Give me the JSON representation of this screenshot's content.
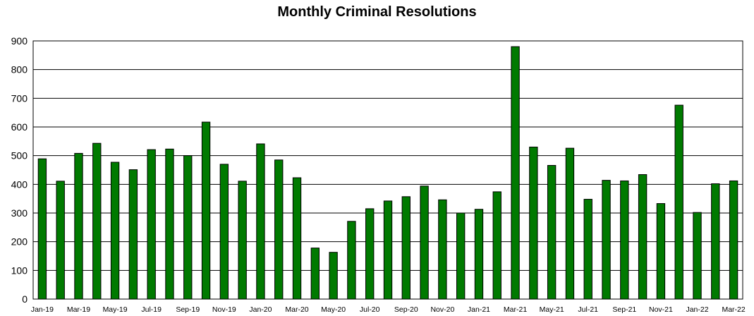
{
  "chart_data": {
    "type": "bar",
    "title": "Monthly Criminal Resolutions",
    "xlabel": "",
    "ylabel": "",
    "ylim": [
      0,
      900
    ],
    "yticks": [
      0,
      100,
      200,
      300,
      400,
      500,
      600,
      700,
      800,
      900
    ],
    "grid": true,
    "legend": "none",
    "bar_color": "#007a00",
    "categories": [
      "Jan-19",
      "Feb-19",
      "Mar-19",
      "Apr-19",
      "May-19",
      "Jun-19",
      "Jul-19",
      "Aug-19",
      "Sep-19",
      "Oct-19",
      "Nov-19",
      "Dec-19",
      "Jan-20",
      "Feb-20",
      "Mar-20",
      "Apr-20",
      "May-20",
      "Jun-20",
      "Jul-20",
      "Aug-20",
      "Sep-20",
      "Oct-20",
      "Nov-20",
      "Dec-20",
      "Jan-21",
      "Feb-21",
      "Mar-21",
      "Apr-21",
      "May-21",
      "Jun-21",
      "Jul-21",
      "Aug-21",
      "Sep-21",
      "Oct-21",
      "Nov-21",
      "Dec-21",
      "Jan-22",
      "Feb-22",
      "Mar-22"
    ],
    "tick_labels": [
      "Jan-19",
      "",
      "Mar-19",
      "",
      "May-19",
      "",
      "Jul-19",
      "",
      "Sep-19",
      "",
      "Nov-19",
      "",
      "Jan-20",
      "",
      "Mar-20",
      "",
      "May-20",
      "",
      "Jul-20",
      "",
      "Sep-20",
      "",
      "Nov-20",
      "",
      "Jan-21",
      "",
      "Mar-21",
      "",
      "May-21",
      "",
      "Jul-21",
      "",
      "Sep-21",
      "",
      "Nov-21",
      "",
      "Jan-22",
      "",
      "Mar-22"
    ],
    "values": [
      489,
      411,
      508,
      543,
      477,
      451,
      521,
      523,
      500,
      617,
      470,
      411,
      541,
      485,
      423,
      178,
      163,
      271,
      315,
      342,
      357,
      394,
      346,
      300,
      313,
      374,
      880,
      530,
      466,
      526,
      348,
      414,
      412,
      434,
      333,
      676,
      302,
      402,
      412
    ]
  }
}
